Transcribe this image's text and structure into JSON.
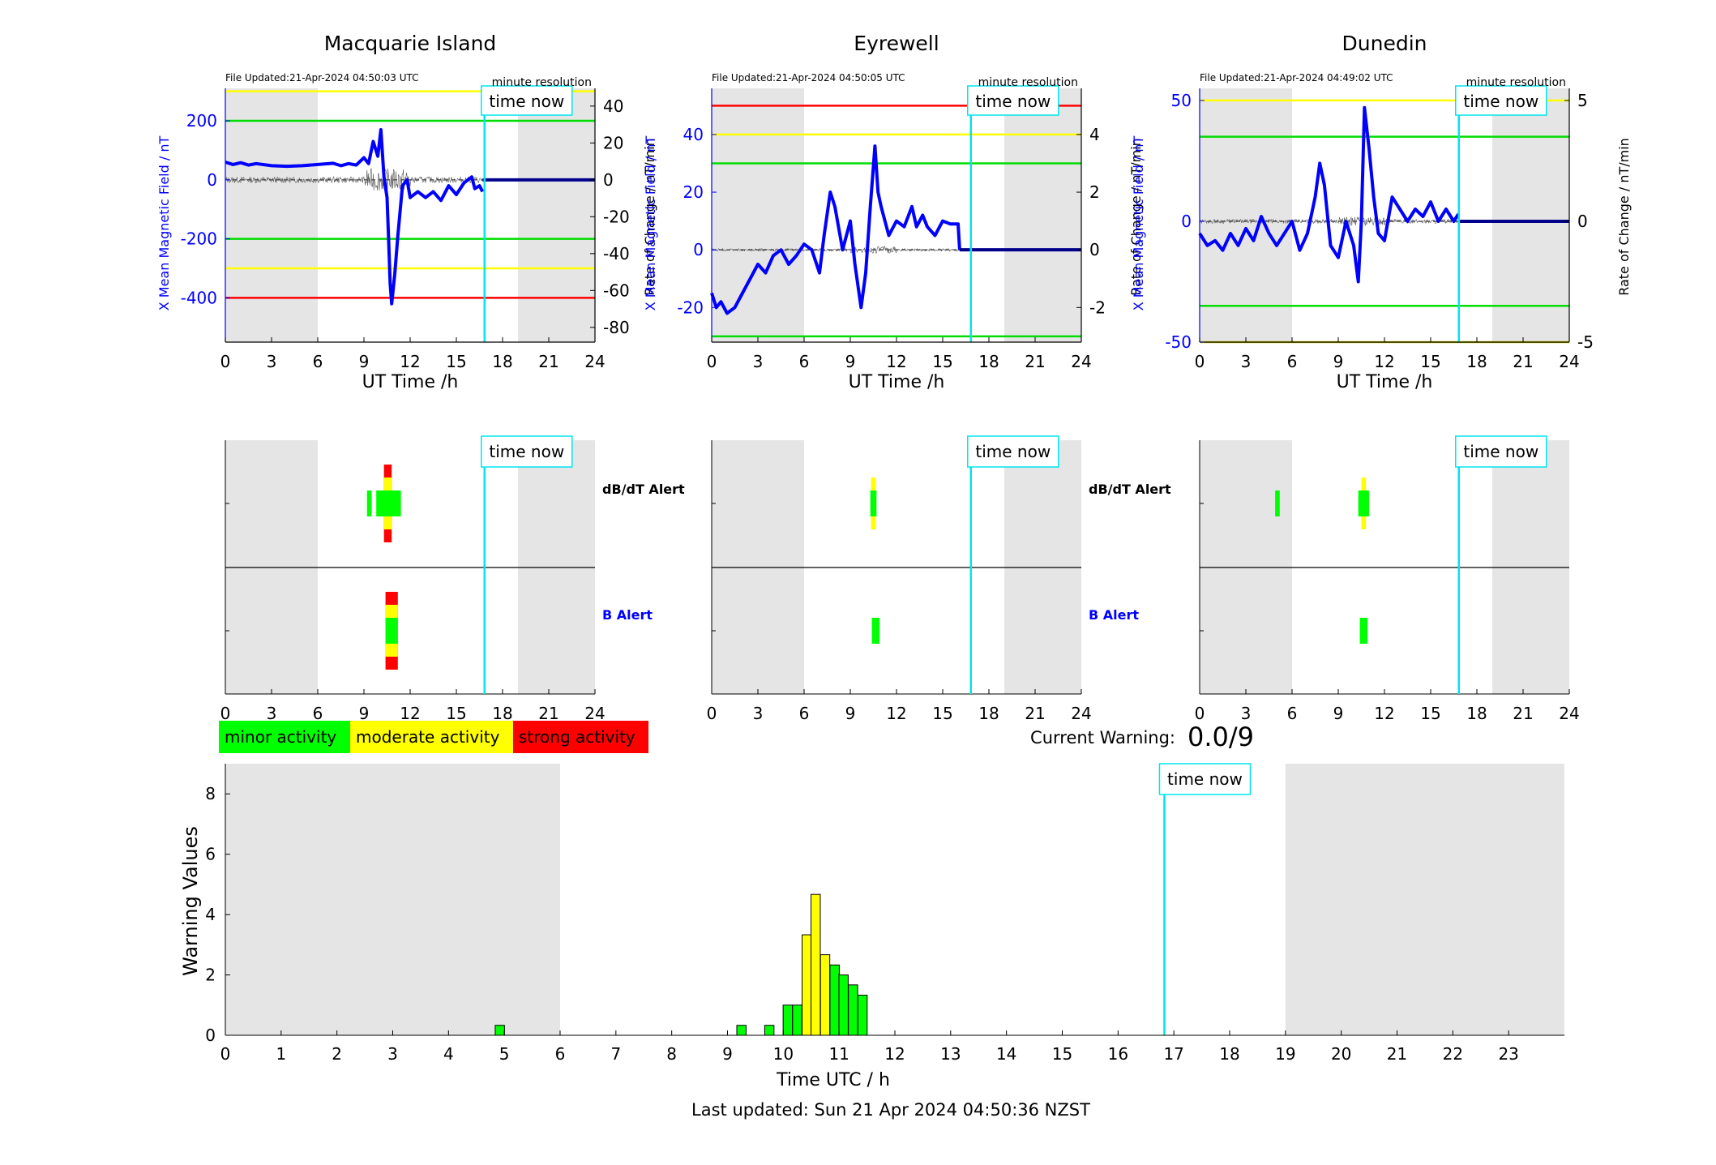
{
  "stations": [
    {
      "name": "Macquarie Island",
      "file_updated": "File Updated:21-Apr-2024 04:50:03 UTC",
      "resolution": "minute resolution",
      "now_label": "time now",
      "ylabel_left": "X Mean Magnetic Field / nT",
      "ylabel_right": "Rate of Change / nT/min",
      "xlabel": "UT Time /h",
      "ylim_left": [
        -550,
        310
      ],
      "ylim_right": [
        -88,
        49.6
      ],
      "yticks_left": [
        200,
        0,
        -200,
        -400
      ],
      "yticks_right": [
        40,
        20,
        0,
        -20,
        -40,
        -60,
        -80
      ],
      "thresholds": [
        {
          "value": 300,
          "color": "#ffff00"
        },
        {
          "value": 200,
          "color": "#00dd00"
        },
        {
          "value": -200,
          "color": "#00dd00"
        },
        {
          "value": -300,
          "color": "#ffff00"
        },
        {
          "value": -400,
          "color": "#ff0000"
        }
      ],
      "x_series": [
        [
          0,
          60
        ],
        [
          0.5,
          52
        ],
        [
          1,
          58
        ],
        [
          1.5,
          50
        ],
        [
          2,
          55
        ],
        [
          3,
          48
        ],
        [
          4,
          46
        ],
        [
          5,
          48
        ],
        [
          6,
          52
        ],
        [
          7,
          56
        ],
        [
          7.5,
          48
        ],
        [
          8,
          55
        ],
        [
          8.5,
          50
        ],
        [
          9,
          75
        ],
        [
          9.3,
          55
        ],
        [
          9.6,
          130
        ],
        [
          9.9,
          80
        ],
        [
          10.1,
          170
        ],
        [
          10.3,
          10
        ],
        [
          10.5,
          -60
        ],
        [
          10.6,
          -200
        ],
        [
          10.7,
          -350
        ],
        [
          10.8,
          -420
        ],
        [
          11,
          -320
        ],
        [
          11.2,
          -190
        ],
        [
          11.5,
          -20
        ],
        [
          11.8,
          0
        ],
        [
          12,
          -60
        ],
        [
          12.5,
          -40
        ],
        [
          13,
          -60
        ],
        [
          13.5,
          -40
        ],
        [
          14,
          -70
        ],
        [
          14.5,
          -20
        ],
        [
          15,
          -50
        ],
        [
          15.5,
          -10
        ],
        [
          16,
          10
        ],
        [
          16.2,
          -30
        ],
        [
          16.5,
          -20
        ],
        [
          16.7,
          -40
        ]
      ],
      "flat_level": 0,
      "noise_amplitude": 12,
      "storm_noise_amplitude": 45,
      "dbdt_alert": [
        {
          "start": 9.2,
          "end": 9.5,
          "level": "minor"
        },
        {
          "start": 9.8,
          "end": 11.4,
          "level": "minor"
        },
        {
          "start": 10.3,
          "end": 10.8,
          "level": "moderate"
        },
        {
          "start": 10.3,
          "end": 10.8,
          "level": "strong"
        }
      ],
      "b_alert": [
        {
          "start": 10.4,
          "end": 11.2,
          "level": "minor"
        },
        {
          "start": 10.4,
          "end": 11.2,
          "level": "moderate"
        },
        {
          "start": 10.4,
          "end": 11.2,
          "level": "strong"
        }
      ]
    },
    {
      "name": "Eyrewell",
      "file_updated": "File Updated:21-Apr-2024 04:50:05 UTC",
      "resolution": "minute resolution",
      "now_label": "time now",
      "ylabel_left": "X Mean Magnetic Field / nT",
      "ylabel_right": "Rate of Change / nT/min",
      "xlabel": "UT Time /h",
      "ylim_left": [
        -32,
        56
      ],
      "ylim_right": [
        -3.2,
        5.6
      ],
      "yticks_left": [
        40,
        20,
        0,
        -20
      ],
      "yticks_right": [
        4,
        2,
        0,
        -2
      ],
      "thresholds": [
        {
          "value": 50,
          "color": "#ff0000"
        },
        {
          "value": 40,
          "color": "#ffff00"
        },
        {
          "value": 30,
          "color": "#00dd00"
        },
        {
          "value": -30,
          "color": "#00dd00"
        }
      ],
      "x_series": [
        [
          0,
          -15
        ],
        [
          0.3,
          -20
        ],
        [
          0.6,
          -18
        ],
        [
          1,
          -22
        ],
        [
          1.5,
          -20
        ],
        [
          2,
          -15
        ],
        [
          2.5,
          -10
        ],
        [
          3,
          -5
        ],
        [
          3.5,
          -8
        ],
        [
          4,
          -2
        ],
        [
          4.5,
          0
        ],
        [
          5,
          -5
        ],
        [
          5.5,
          -2
        ],
        [
          6,
          2
        ],
        [
          6.5,
          0
        ],
        [
          7,
          -8
        ],
        [
          7.3,
          5
        ],
        [
          7.7,
          20
        ],
        [
          8,
          15
        ],
        [
          8.5,
          0
        ],
        [
          9,
          10
        ],
        [
          9.3,
          -5
        ],
        [
          9.7,
          -20
        ],
        [
          10,
          -8
        ],
        [
          10.3,
          15
        ],
        [
          10.6,
          36
        ],
        [
          10.8,
          20
        ],
        [
          11,
          15
        ],
        [
          11.5,
          5
        ],
        [
          12,
          10
        ],
        [
          12.5,
          8
        ],
        [
          13,
          15
        ],
        [
          13.3,
          8
        ],
        [
          13.7,
          12
        ],
        [
          14,
          8
        ],
        [
          14.5,
          5
        ],
        [
          15,
          10
        ],
        [
          15.5,
          9
        ],
        [
          16,
          9
        ],
        [
          16.1,
          0
        ]
      ],
      "flat_level": 0,
      "noise_amplitude": 5,
      "storm_noise_amplitude": 14,
      "dbdt_alert": [
        {
          "start": 10.3,
          "end": 10.7,
          "level": "minor"
        },
        {
          "start": 10.35,
          "end": 10.65,
          "level": "moderate"
        }
      ],
      "b_alert": [
        {
          "start": 10.4,
          "end": 10.9,
          "level": "minor"
        }
      ]
    },
    {
      "name": "Dunedin",
      "file_updated": "File Updated:21-Apr-2024 04:49:02 UTC",
      "resolution": "minute resolution",
      "now_label": "time now",
      "ylabel_left": "X Mean Magnetic Field / nT",
      "ylabel_right": "Rate of Change / nT/min",
      "xlabel": "UT Time /h",
      "ylim_left": [
        -50,
        55
      ],
      "ylim_right": [
        -5,
        5.5
      ],
      "yticks_left": [
        50,
        0,
        -50
      ],
      "yticks_right": [
        5,
        0,
        -5
      ],
      "thresholds": [
        {
          "value": 50,
          "color": "#ffff00"
        },
        {
          "value": 35,
          "color": "#00dd00"
        },
        {
          "value": -35,
          "color": "#00dd00"
        },
        {
          "value": -50,
          "color": "#cccc00"
        }
      ],
      "x_series": [
        [
          0,
          -5
        ],
        [
          0.5,
          -10
        ],
        [
          1,
          -8
        ],
        [
          1.5,
          -12
        ],
        [
          2,
          -5
        ],
        [
          2.5,
          -10
        ],
        [
          3,
          -3
        ],
        [
          3.5,
          -8
        ],
        [
          4,
          2
        ],
        [
          4.5,
          -5
        ],
        [
          5,
          -10
        ],
        [
          5.5,
          -5
        ],
        [
          6,
          0
        ],
        [
          6.5,
          -12
        ],
        [
          7,
          -5
        ],
        [
          7.5,
          10
        ],
        [
          7.8,
          24
        ],
        [
          8.1,
          15
        ],
        [
          8.5,
          -10
        ],
        [
          9,
          -15
        ],
        [
          9.5,
          0
        ],
        [
          10,
          -10
        ],
        [
          10.3,
          -25
        ],
        [
          10.5,
          0
        ],
        [
          10.7,
          47
        ],
        [
          11,
          30
        ],
        [
          11.3,
          10
        ],
        [
          11.6,
          -5
        ],
        [
          12,
          -8
        ],
        [
          12.5,
          10
        ],
        [
          13,
          5
        ],
        [
          13.5,
          0
        ],
        [
          14,
          5
        ],
        [
          14.5,
          2
        ],
        [
          15,
          8
        ],
        [
          15.5,
          0
        ],
        [
          16,
          5
        ],
        [
          16.5,
          0
        ],
        [
          16.8,
          3
        ]
      ],
      "flat_level": 0,
      "noise_amplitude": 8,
      "storm_noise_amplitude": 18,
      "dbdt_alert": [
        {
          "start": 4.9,
          "end": 5.2,
          "level": "minor"
        },
        {
          "start": 10.3,
          "end": 11.0,
          "level": "minor"
        },
        {
          "start": 10.5,
          "end": 10.8,
          "level": "moderate"
        }
      ],
      "b_alert": [
        {
          "start": 10.4,
          "end": 10.9,
          "level": "minor"
        }
      ]
    }
  ],
  "alert_labels": {
    "dbdt": "dB/dT Alert",
    "b": "B Alert"
  },
  "legend": [
    {
      "label": "minor activity",
      "color": "#00ff00"
    },
    {
      "label": "moderate activity",
      "color": "#ffff00"
    },
    {
      "label": "strong activity",
      "color": "#ff0000"
    }
  ],
  "current_warning": {
    "label": "Current Warning:",
    "value": "0.0/9"
  },
  "time_now_hours": 16.83,
  "shade": {
    "color": "#e5e5e5",
    "before": 6,
    "after": 19
  },
  "hour_ticks": [
    "0",
    "3",
    "6",
    "9",
    "12",
    "15",
    "18",
    "21",
    "24"
  ],
  "chart_data": {
    "type": "bar",
    "xlabel": "Time UTC / h",
    "ylabel": "Warning Values",
    "xlim": [
      0,
      24
    ],
    "ylim": [
      0,
      9
    ],
    "yticks": [
      "0",
      "2",
      "4",
      "6",
      "8"
    ],
    "xticks": [
      "0",
      "1",
      "2",
      "3",
      "4",
      "5",
      "6",
      "7",
      "8",
      "9",
      "10",
      "11",
      "12",
      "13",
      "14",
      "15",
      "16",
      "17",
      "18",
      "19",
      "20",
      "21",
      "22",
      "23"
    ],
    "now_label": "time now",
    "bar_width": 0.166,
    "bars": [
      {
        "x": 4.92,
        "value": 0.33,
        "level": "minor"
      },
      {
        "x": 9.25,
        "value": 0.33,
        "level": "minor"
      },
      {
        "x": 9.75,
        "value": 0.33,
        "level": "minor"
      },
      {
        "x": 10.08,
        "value": 1.0,
        "level": "minor"
      },
      {
        "x": 10.25,
        "value": 1.0,
        "level": "minor"
      },
      {
        "x": 10.42,
        "value": 3.33,
        "level": "moderate"
      },
      {
        "x": 10.58,
        "value": 4.67,
        "level": "moderate"
      },
      {
        "x": 10.75,
        "value": 2.67,
        "level": "moderate"
      },
      {
        "x": 10.92,
        "value": 2.33,
        "level": "minor"
      },
      {
        "x": 11.08,
        "value": 2.0,
        "level": "minor"
      },
      {
        "x": 11.25,
        "value": 1.67,
        "level": "minor"
      },
      {
        "x": 11.42,
        "value": 1.33,
        "level": "minor"
      }
    ]
  },
  "last_updated": "Last updated: Sun 21 Apr 2024 04:50:36 NZST"
}
